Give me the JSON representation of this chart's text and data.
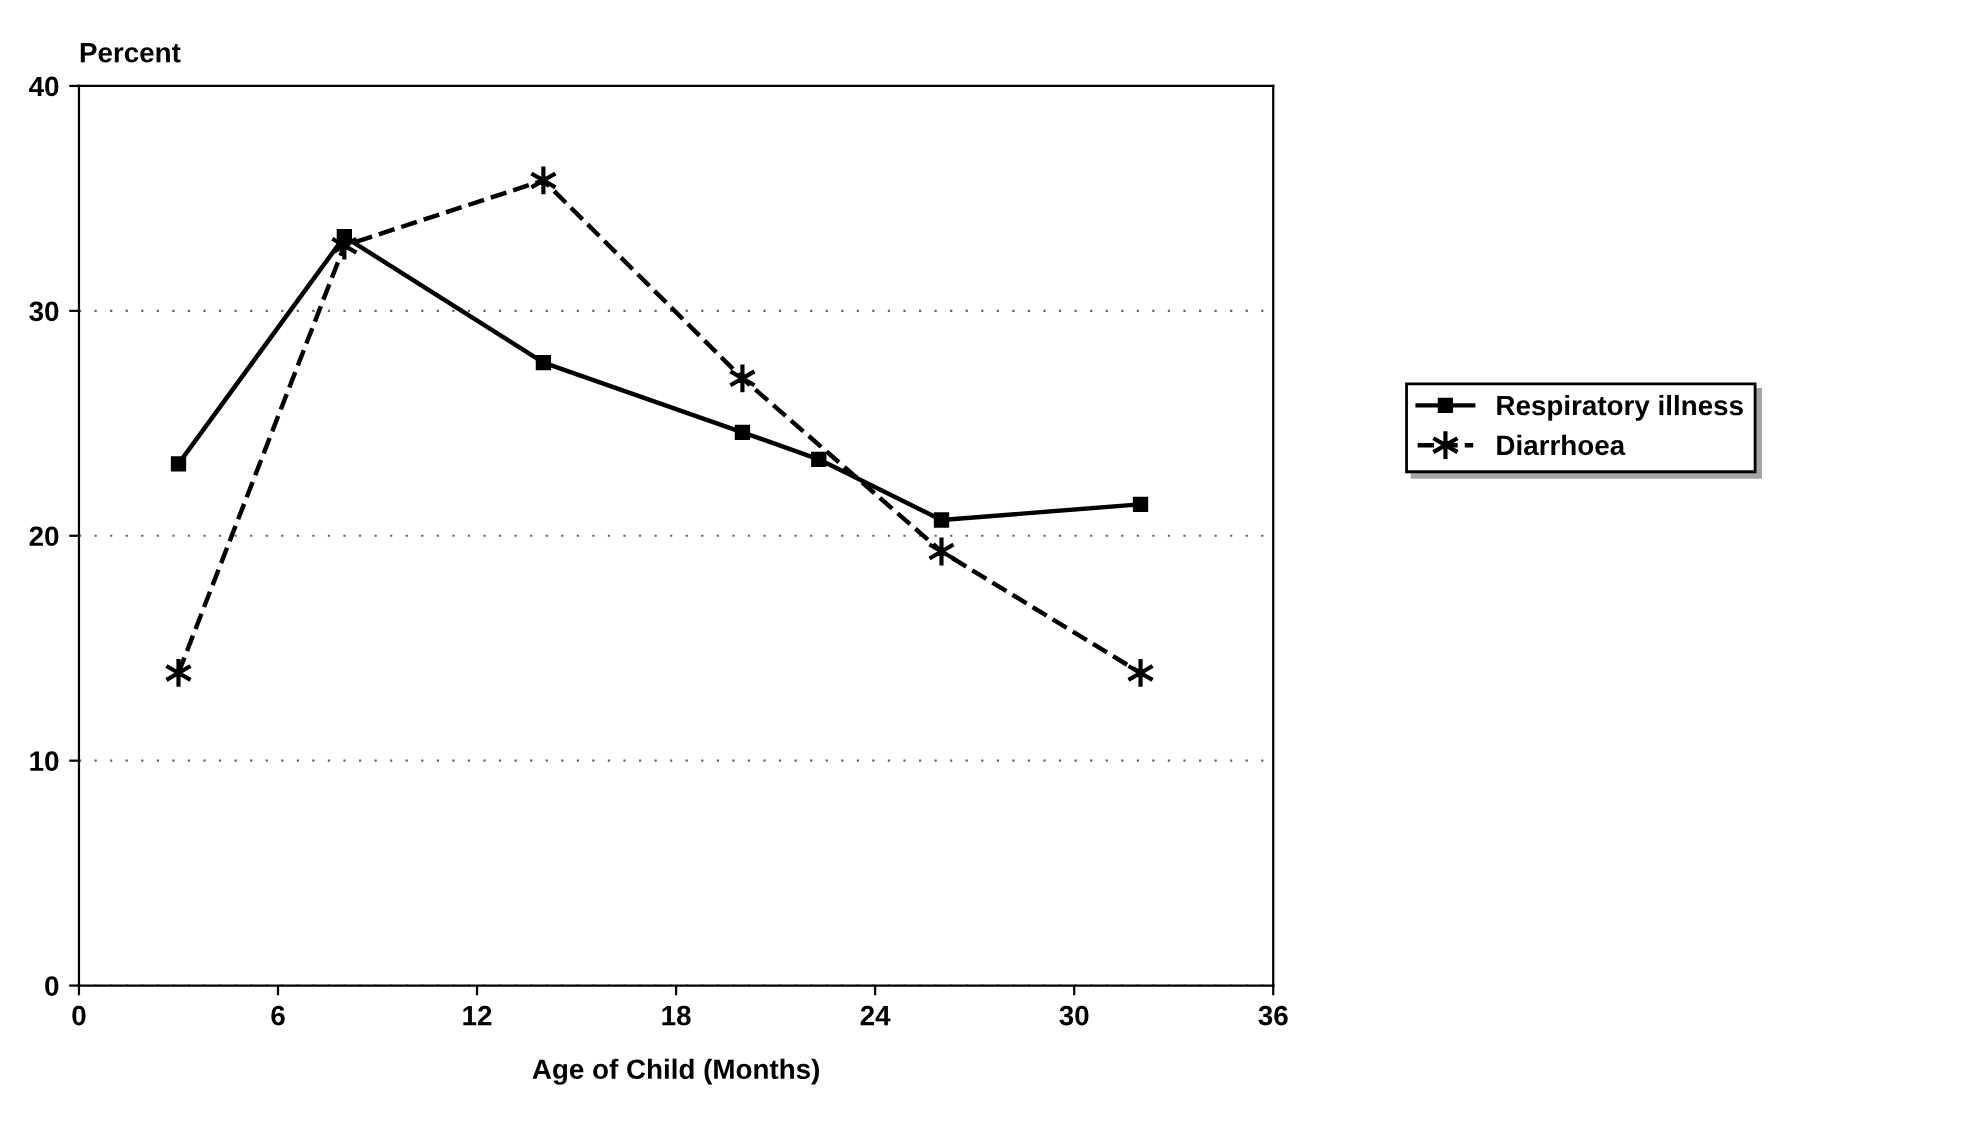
{
  "chart_data": {
    "type": "line",
    "ylabel": "Percent",
    "xlabel": "Age of Child (Months)",
    "xlim": [
      0,
      36
    ],
    "xticks": [
      0,
      6,
      12,
      18,
      24,
      30,
      36
    ],
    "ylim": [
      0,
      40
    ],
    "yticks": [
      0,
      10,
      20,
      30,
      40
    ],
    "grid": "y",
    "legend": "right",
    "series": [
      {
        "name": "Respiratory illness",
        "color": "#000000",
        "marker": "square",
        "line_style": "solid",
        "x": [
          3,
          8,
          14,
          20,
          22.3,
          26,
          32
        ],
        "values": [
          23.2,
          33.3,
          27.7,
          24.6,
          23.4,
          20.7,
          21.4
        ]
      },
      {
        "name": "Diarrhoea",
        "color": "#000000",
        "marker": "cross",
        "line_style": "dashed",
        "x": [
          3,
          8,
          14,
          20,
          26,
          32
        ],
        "values": [
          13.9,
          32.9,
          35.8,
          27.0,
          19.3,
          13.9
        ]
      }
    ]
  }
}
